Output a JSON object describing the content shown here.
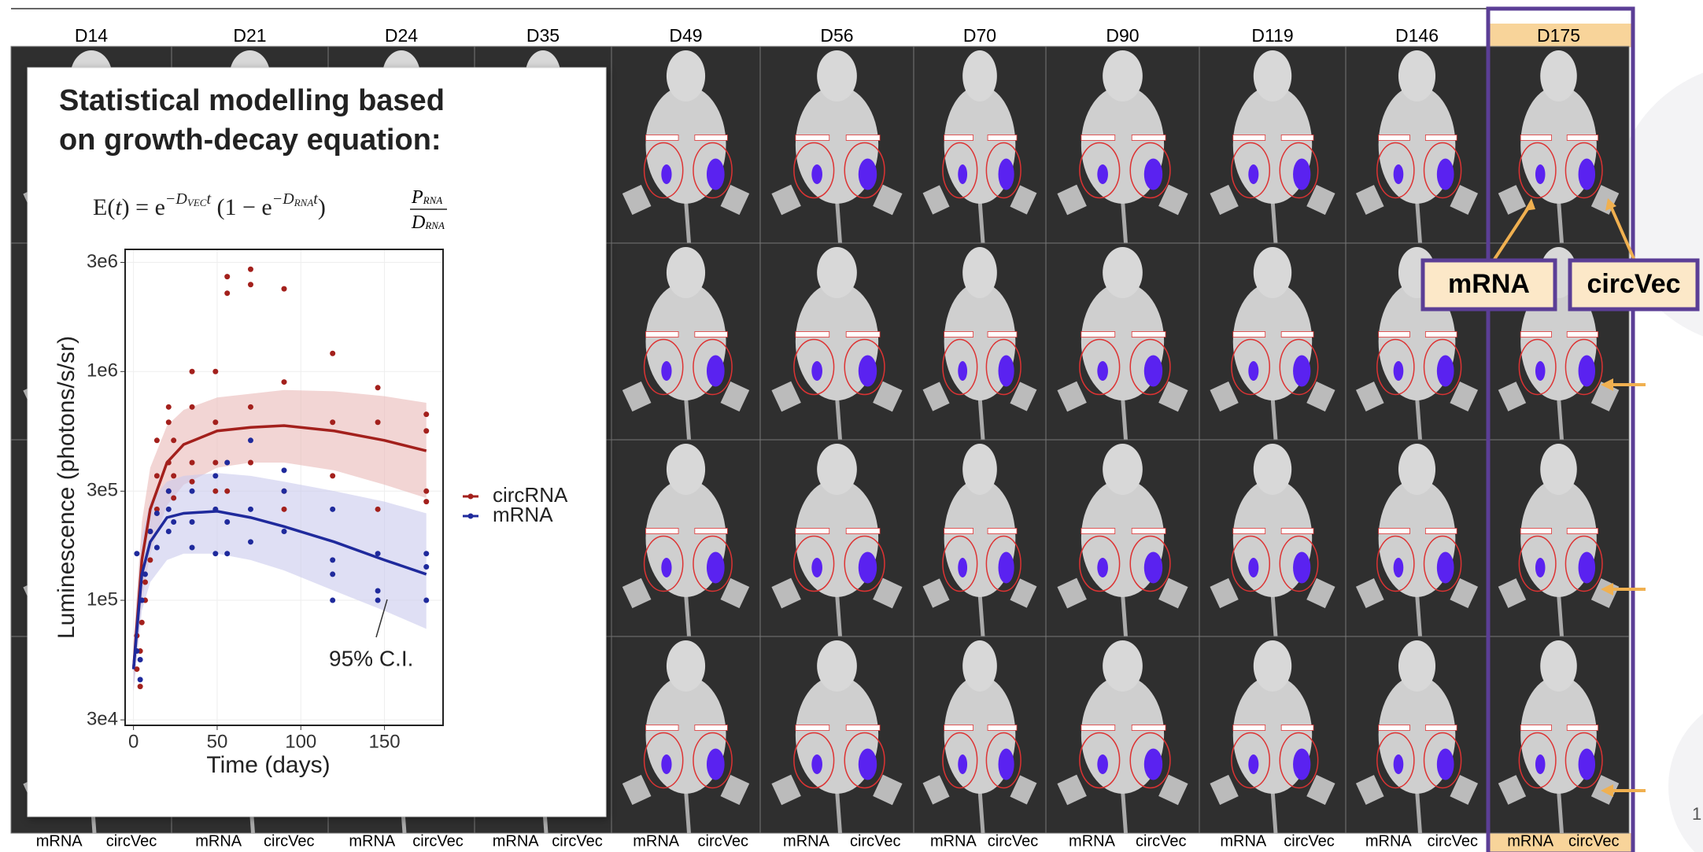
{
  "header": {
    "columns": [
      "D14",
      "D21",
      "D24",
      "D35",
      "D49",
      "D56",
      "D70",
      "D90",
      "D119",
      "D146",
      "D175"
    ]
  },
  "footer": [
    [
      "mRNA",
      "circVec"
    ],
    [
      "mRNA",
      "circVec"
    ],
    [
      "mRNA",
      "circVec"
    ],
    [
      "mRNA",
      "circVec"
    ],
    [
      "mRNA",
      "circVec"
    ],
    [
      "mRNA",
      "circVec"
    ],
    [
      "mRNA",
      "circVec"
    ],
    [
      "mRNA",
      "circVec"
    ],
    [
      "mRNA",
      "circVec"
    ],
    [
      "mRNA",
      "circVec"
    ],
    [
      "mRNA",
      "circVec"
    ]
  ],
  "callouts": [
    "mRNA",
    "circVec"
  ],
  "page_number": "1",
  "equation": [
    "E(",
    "t",
    ") = ",
    "e",
    "−D",
    "VEC",
    "t",
    " (1 − ",
    "e",
    "−D",
    "RNA",
    "t",
    ")",
    "P",
    "RNA",
    "D",
    "RNA"
  ],
  "chart_data": {
    "type": "scatter",
    "title": [
      "Statistical modelling based",
      "on growth-decay equation:"
    ],
    "xlabel": "Time (days)",
    "ylabel": "Luminescence (photons/s/sr)",
    "xlim": [
      -5,
      185
    ],
    "xticks": [
      0,
      50,
      100,
      150
    ],
    "ylim": [
      28400,
      3420000
    ],
    "log_y": true,
    "yticks": [
      {
        "value": 30000,
        "label": "3e4"
      },
      {
        "value": 100000,
        "label": "1e5"
      },
      {
        "value": 300000,
        "label": "3e5"
      },
      {
        "value": 1000000,
        "label": "1e6"
      },
      {
        "value": 3000000,
        "label": "3e6"
      }
    ],
    "grid": true,
    "legend": "right",
    "annotation": "95% C.I.",
    "series": [
      {
        "name": "circRNA",
        "color": "#a3201c",
        "band_color": "#e9b9b8",
        "x": [
          2,
          2,
          4,
          4,
          5,
          7,
          7,
          10,
          10,
          14,
          14,
          14,
          21,
          21,
          21,
          21,
          24,
          24,
          24,
          35,
          35,
          35,
          35,
          49,
          49,
          49,
          49,
          56,
          56,
          56,
          70,
          70,
          70,
          70,
          90,
          90,
          90,
          90,
          119,
          119,
          119,
          146,
          146,
          146,
          175,
          175,
          175,
          175
        ],
        "values": [
          70000,
          50000,
          60000,
          42000,
          80000,
          120000,
          100000,
          200000,
          150000,
          350000,
          500000,
          250000,
          600000,
          400000,
          300000,
          700000,
          500000,
          350000,
          280000,
          700000,
          400000,
          330000,
          1000000,
          1000000,
          600000,
          400000,
          300000,
          2600000,
          2200000,
          300000,
          2800000,
          2400000,
          700000,
          400000,
          2300000,
          900000,
          300000,
          250000,
          1200000,
          600000,
          350000,
          850000,
          600000,
          250000,
          650000,
          550000,
          300000,
          270000
        ],
        "fit": {
          "x": [
            0,
            5,
            10,
            20,
            30,
            50,
            70,
            90,
            120,
            150,
            175
          ],
          "values": [
            50000,
            150000,
            250000,
            400000,
            480000,
            550000,
            570000,
            580000,
            550000,
            500000,
            450000
          ],
          "lower": [
            40000,
            100000,
            160000,
            260000,
            320000,
            380000,
            400000,
            400000,
            370000,
            320000,
            280000
          ],
          "upper": [
            65000,
            220000,
            380000,
            580000,
            680000,
            770000,
            800000,
            830000,
            820000,
            780000,
            730000
          ]
        }
      },
      {
        "name": "mRNA",
        "color": "#1f2a9c",
        "band_color": "#c9c9ec",
        "x": [
          2,
          2,
          4,
          4,
          5,
          7,
          10,
          14,
          14,
          21,
          21,
          21,
          24,
          35,
          35,
          35,
          49,
          49,
          49,
          56,
          56,
          56,
          70,
          70,
          70,
          90,
          90,
          90,
          119,
          119,
          119,
          119,
          146,
          146,
          146,
          175,
          175,
          175
        ],
        "values": [
          160000,
          60000,
          55000,
          45000,
          100000,
          130000,
          200000,
          240000,
          170000,
          250000,
          200000,
          300000,
          220000,
          300000,
          220000,
          170000,
          350000,
          250000,
          160000,
          400000,
          220000,
          160000,
          500000,
          250000,
          180000,
          370000,
          300000,
          200000,
          250000,
          150000,
          130000,
          100000,
          160000,
          110000,
          100000,
          160000,
          140000,
          100000
        ],
        "fit": {
          "x": [
            0,
            5,
            10,
            20,
            30,
            50,
            70,
            90,
            120,
            150,
            175
          ],
          "values": [
            50000,
            130000,
            180000,
            230000,
            240000,
            245000,
            230000,
            210000,
            180000,
            150000,
            130000
          ],
          "lower": [
            40000,
            90000,
            120000,
            150000,
            160000,
            160000,
            150000,
            135000,
            110000,
            90000,
            75000
          ],
          "upper": [
            65000,
            190000,
            270000,
            330000,
            350000,
            360000,
            350000,
            330000,
            300000,
            270000,
            240000
          ]
        }
      }
    ]
  }
}
